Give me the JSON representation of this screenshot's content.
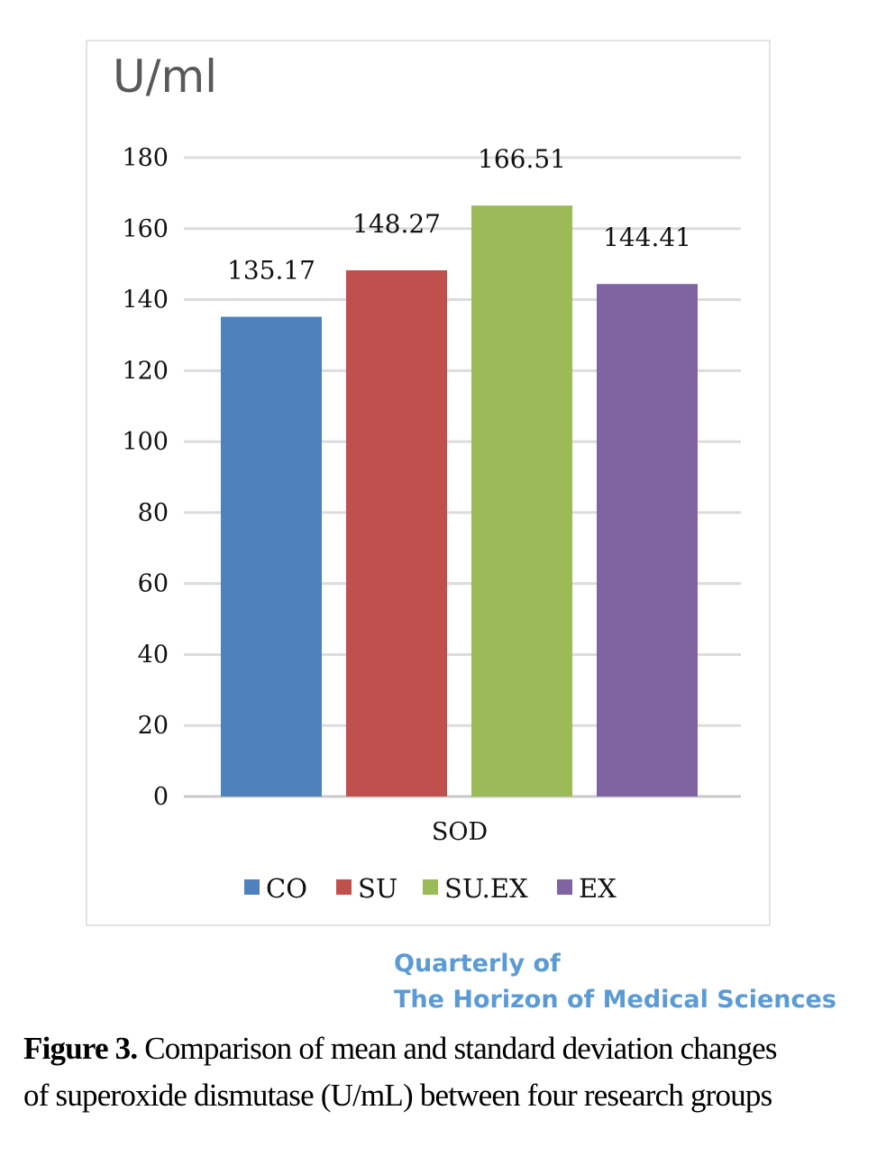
{
  "chart_data": {
    "type": "bar",
    "unit_label": "U/ml",
    "categories": [
      "SOD"
    ],
    "series": [
      {
        "name": "CO",
        "values": [
          135.17
        ],
        "color": "#4f81bd"
      },
      {
        "name": "SU",
        "values": [
          148.27
        ],
        "color": "#c0504d"
      },
      {
        "name": "SU.EX",
        "values": [
          166.51
        ],
        "color": "#9bbb59"
      },
      {
        "name": "EX",
        "values": [
          144.41
        ],
        "color": "#8064a2"
      }
    ],
    "data_labels": [
      "135.17",
      "148.27",
      "166.51",
      "144.41"
    ],
    "y_ticks": [
      "0",
      "20",
      "40",
      "60",
      "80",
      "100",
      "120",
      "140",
      "160",
      "180"
    ],
    "ylim": [
      0,
      180
    ],
    "grid": true,
    "legend_position": "bottom"
  },
  "journal": {
    "line1": "Quarterly of",
    "line2": "The Horizon of Medical Sciences"
  },
  "caption": {
    "label": "Figure 3.",
    "line1": "Comparison of mean and standard deviation changes",
    "line2": "of superoxide dismutase (U/mL) between four research groups"
  }
}
